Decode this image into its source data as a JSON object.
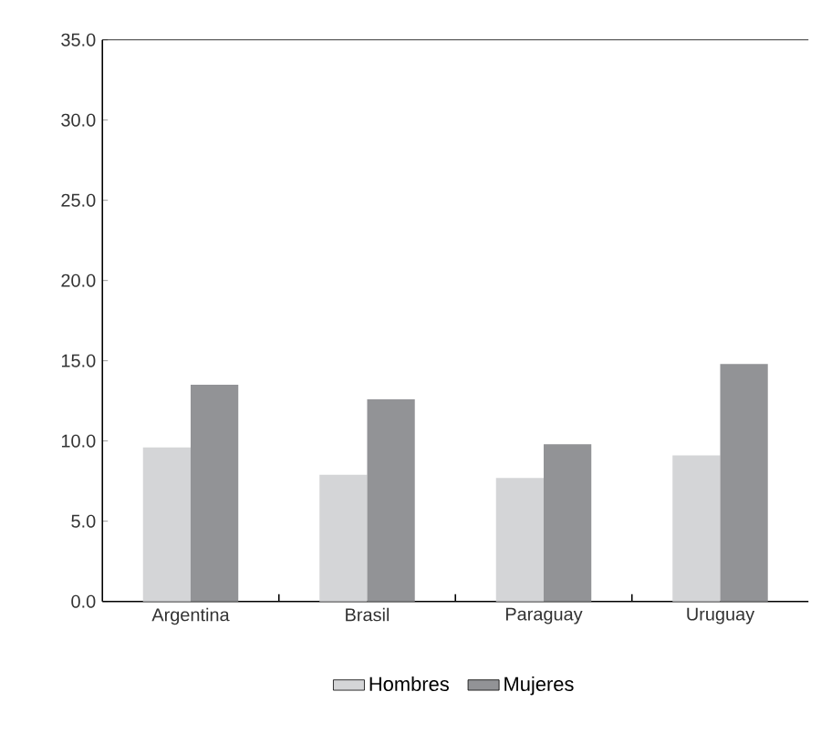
{
  "chart_data": {
    "type": "bar",
    "categories": [
      "Argentina",
      "Brasil",
      "Paraguay",
      "Uruguay"
    ],
    "series": [
      {
        "name": "Hombres",
        "color": "#d4d5d7",
        "values": [
          9.6,
          7.9,
          7.7,
          9.1
        ]
      },
      {
        "name": "Mujeres",
        "color": "#929396",
        "values": [
          13.5,
          12.6,
          9.8,
          14.8
        ]
      }
    ],
    "ylim": [
      0,
      35
    ],
    "yticks": [
      {
        "value": 0,
        "label": "0.0"
      },
      {
        "value": 5,
        "label": "5.0"
      },
      {
        "value": 10,
        "label": "10.0"
      },
      {
        "value": 15,
        "label": "15.0"
      },
      {
        "value": 20,
        "label": "20.0"
      },
      {
        "value": 25,
        "label": "25.0"
      },
      {
        "value": 30,
        "label": "30.0"
      },
      {
        "value": 35,
        "label": "35.0"
      }
    ],
    "grid": false,
    "legend": "bottom"
  }
}
